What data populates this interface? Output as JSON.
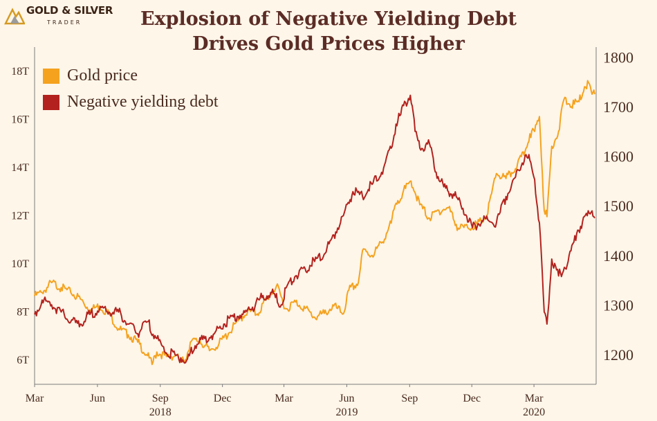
{
  "brand": {
    "name": "GOLD & SILVER",
    "sub": "TRADER"
  },
  "colors": {
    "gold": "#f5a21f",
    "debt": "#b3221e",
    "title": "#5b2c25",
    "text": "#4a2a1f",
    "background": "#fdf6e9"
  },
  "chart_data": {
    "type": "line",
    "title": "Explosion of Negative Yielding Debt Drives Gold Prices Higher",
    "title_lines": [
      "Explosion of Negative Yielding Debt",
      "Drives Gold Prices Higher"
    ],
    "x_range": [
      "2018-03-01",
      "2020-05-31"
    ],
    "x_ticks": [
      {
        "date": "2018-03-01",
        "label": "Mar"
      },
      {
        "date": "2018-06-01",
        "label": "Jun"
      },
      {
        "date": "2018-09-01",
        "label": "Sep"
      },
      {
        "date": "2018-12-01",
        "label": "Dec"
      },
      {
        "date": "2019-03-01",
        "label": "Mar"
      },
      {
        "date": "2019-06-01",
        "label": "Jun"
      },
      {
        "date": "2019-09-01",
        "label": "Sep"
      },
      {
        "date": "2019-12-01",
        "label": "Dec"
      },
      {
        "date": "2020-03-01",
        "label": "Mar"
      }
    ],
    "year_labels": [
      {
        "date": "2018-09-01",
        "label": "2018"
      },
      {
        "date": "2019-06-01",
        "label": "2019"
      },
      {
        "date": "2020-03-01",
        "label": "2020"
      }
    ],
    "left_axis": {
      "ylim": [
        5,
        19
      ],
      "ticks": [
        6,
        8,
        10,
        12,
        14,
        16,
        18
      ],
      "tick_labels": [
        "6T",
        "8T",
        "10T",
        "12T",
        "14T",
        "16T",
        "18T"
      ]
    },
    "right_axis": {
      "ylim": [
        1140,
        1820
      ],
      "ticks": [
        1200,
        1300,
        1400,
        1500,
        1600,
        1700,
        1800
      ],
      "tick_labels": [
        "1200",
        "1300",
        "1400",
        "1500",
        "1600",
        "1700",
        "1800"
      ]
    },
    "legend": {
      "placement": "top-left"
    },
    "grid": false,
    "series": [
      {
        "name": "Gold price",
        "axis": "right",
        "color": "#f5a21f",
        "points": [
          [
            "2018-03-01",
            1318
          ],
          [
            "2018-03-12",
            1325
          ],
          [
            "2018-03-26",
            1345
          ],
          [
            "2018-04-09",
            1335
          ],
          [
            "2018-04-23",
            1325
          ],
          [
            "2018-05-07",
            1312
          ],
          [
            "2018-05-21",
            1290
          ],
          [
            "2018-06-04",
            1298
          ],
          [
            "2018-06-18",
            1282
          ],
          [
            "2018-07-02",
            1252
          ],
          [
            "2018-07-16",
            1240
          ],
          [
            "2018-07-30",
            1225
          ],
          [
            "2018-08-13",
            1198
          ],
          [
            "2018-08-20",
            1180
          ],
          [
            "2018-08-27",
            1205
          ],
          [
            "2018-09-10",
            1196
          ],
          [
            "2018-09-24",
            1198
          ],
          [
            "2018-10-01",
            1185
          ],
          [
            "2018-10-08",
            1190
          ],
          [
            "2018-10-15",
            1225
          ],
          [
            "2018-10-29",
            1228
          ],
          [
            "2018-11-12",
            1208
          ],
          [
            "2018-11-26",
            1222
          ],
          [
            "2018-12-10",
            1243
          ],
          [
            "2018-12-24",
            1268
          ],
          [
            "2019-01-07",
            1288
          ],
          [
            "2019-01-21",
            1282
          ],
          [
            "2019-02-04",
            1312
          ],
          [
            "2019-02-18",
            1338
          ],
          [
            "2019-03-04",
            1292
          ],
          [
            "2019-03-18",
            1306
          ],
          [
            "2019-04-01",
            1293
          ],
          [
            "2019-04-15",
            1275
          ],
          [
            "2019-04-29",
            1283
          ],
          [
            "2019-05-13",
            1298
          ],
          [
            "2019-05-27",
            1282
          ],
          [
            "2019-06-04",
            1330
          ],
          [
            "2019-06-18",
            1345
          ],
          [
            "2019-06-24",
            1410
          ],
          [
            "2019-07-08",
            1400
          ],
          [
            "2019-07-22",
            1425
          ],
          [
            "2019-08-05",
            1465
          ],
          [
            "2019-08-12",
            1505
          ],
          [
            "2019-08-26",
            1535
          ],
          [
            "2019-09-03",
            1550
          ],
          [
            "2019-09-16",
            1502
          ],
          [
            "2019-09-30",
            1475
          ],
          [
            "2019-10-14",
            1490
          ],
          [
            "2019-10-28",
            1496
          ],
          [
            "2019-11-11",
            1455
          ],
          [
            "2019-11-25",
            1456
          ],
          [
            "2019-12-09",
            1462
          ],
          [
            "2019-12-23",
            1480
          ],
          [
            "2020-01-06",
            1565
          ],
          [
            "2020-01-20",
            1555
          ],
          [
            "2020-02-03",
            1575
          ],
          [
            "2020-02-17",
            1610
          ],
          [
            "2020-02-24",
            1645
          ],
          [
            "2020-03-02",
            1650
          ],
          [
            "2020-03-09",
            1680
          ],
          [
            "2020-03-16",
            1490
          ],
          [
            "2020-03-20",
            1478
          ],
          [
            "2020-03-27",
            1620
          ],
          [
            "2020-04-06",
            1650
          ],
          [
            "2020-04-14",
            1715
          ],
          [
            "2020-04-22",
            1705
          ],
          [
            "2020-04-29",
            1705
          ],
          [
            "2020-05-06",
            1710
          ],
          [
            "2020-05-14",
            1740
          ],
          [
            "2020-05-20",
            1748
          ],
          [
            "2020-05-25",
            1725
          ],
          [
            "2020-05-29",
            1725
          ]
        ]
      },
      {
        "name": "Negative yielding debt",
        "axis": "left",
        "color": "#b3221e",
        "points": [
          [
            "2018-03-01",
            7.9
          ],
          [
            "2018-03-12",
            8.5
          ],
          [
            "2018-03-26",
            8.3
          ],
          [
            "2018-04-09",
            8.0
          ],
          [
            "2018-04-23",
            7.6
          ],
          [
            "2018-05-07",
            7.5
          ],
          [
            "2018-05-21",
            7.9
          ],
          [
            "2018-06-04",
            8.1
          ],
          [
            "2018-06-18",
            8.0
          ],
          [
            "2018-07-02",
            8.0
          ],
          [
            "2018-07-16",
            7.5
          ],
          [
            "2018-07-30",
            7.1
          ],
          [
            "2018-08-13",
            7.6
          ],
          [
            "2018-08-27",
            6.9
          ],
          [
            "2018-09-10",
            6.3
          ],
          [
            "2018-09-24",
            6.2
          ],
          [
            "2018-10-01",
            6.1
          ],
          [
            "2018-10-08",
            5.9
          ],
          [
            "2018-10-22",
            6.6
          ],
          [
            "2018-11-05",
            6.9
          ],
          [
            "2018-11-19",
            7.1
          ],
          [
            "2018-12-03",
            7.5
          ],
          [
            "2018-12-17",
            7.8
          ],
          [
            "2018-12-31",
            7.9
          ],
          [
            "2019-01-14",
            8.2
          ],
          [
            "2019-01-28",
            8.6
          ],
          [
            "2019-02-11",
            8.8
          ],
          [
            "2019-02-25",
            8.3
          ],
          [
            "2019-03-04",
            9.0
          ],
          [
            "2019-03-18",
            9.5
          ],
          [
            "2019-04-01",
            9.8
          ],
          [
            "2019-04-15",
            10.1
          ],
          [
            "2019-04-29",
            10.4
          ],
          [
            "2019-05-13",
            11.2
          ],
          [
            "2019-05-27",
            12.0
          ],
          [
            "2019-06-10",
            13.0
          ],
          [
            "2019-06-24",
            12.8
          ],
          [
            "2019-07-08",
            13.3
          ],
          [
            "2019-07-22",
            13.8
          ],
          [
            "2019-08-05",
            14.8
          ],
          [
            "2019-08-12",
            15.8
          ],
          [
            "2019-08-19",
            16.2
          ],
          [
            "2019-08-26",
            16.7
          ],
          [
            "2019-09-02",
            17.0
          ],
          [
            "2019-09-09",
            15.5
          ],
          [
            "2019-09-16",
            14.8
          ],
          [
            "2019-09-30",
            15.0
          ],
          [
            "2019-10-07",
            14.0
          ],
          [
            "2019-10-21",
            13.2
          ],
          [
            "2019-11-04",
            12.9
          ],
          [
            "2019-11-18",
            12.3
          ],
          [
            "2019-12-02",
            11.5
          ],
          [
            "2019-12-16",
            11.8
          ],
          [
            "2020-01-06",
            11.7
          ],
          [
            "2020-01-20",
            12.8
          ],
          [
            "2020-02-03",
            13.6
          ],
          [
            "2020-02-17",
            14.5
          ],
          [
            "2020-02-24",
            14.3
          ],
          [
            "2020-03-02",
            13.5
          ],
          [
            "2020-03-09",
            11.7
          ],
          [
            "2020-03-16",
            8.0
          ],
          [
            "2020-03-20",
            7.5
          ],
          [
            "2020-03-27",
            10.2
          ],
          [
            "2020-04-06",
            9.5
          ],
          [
            "2020-04-20",
            10.1
          ],
          [
            "2020-05-04",
            11.4
          ],
          [
            "2020-05-18",
            12.0
          ],
          [
            "2020-05-25",
            12.2
          ],
          [
            "2020-05-29",
            11.9
          ]
        ]
      }
    ]
  }
}
